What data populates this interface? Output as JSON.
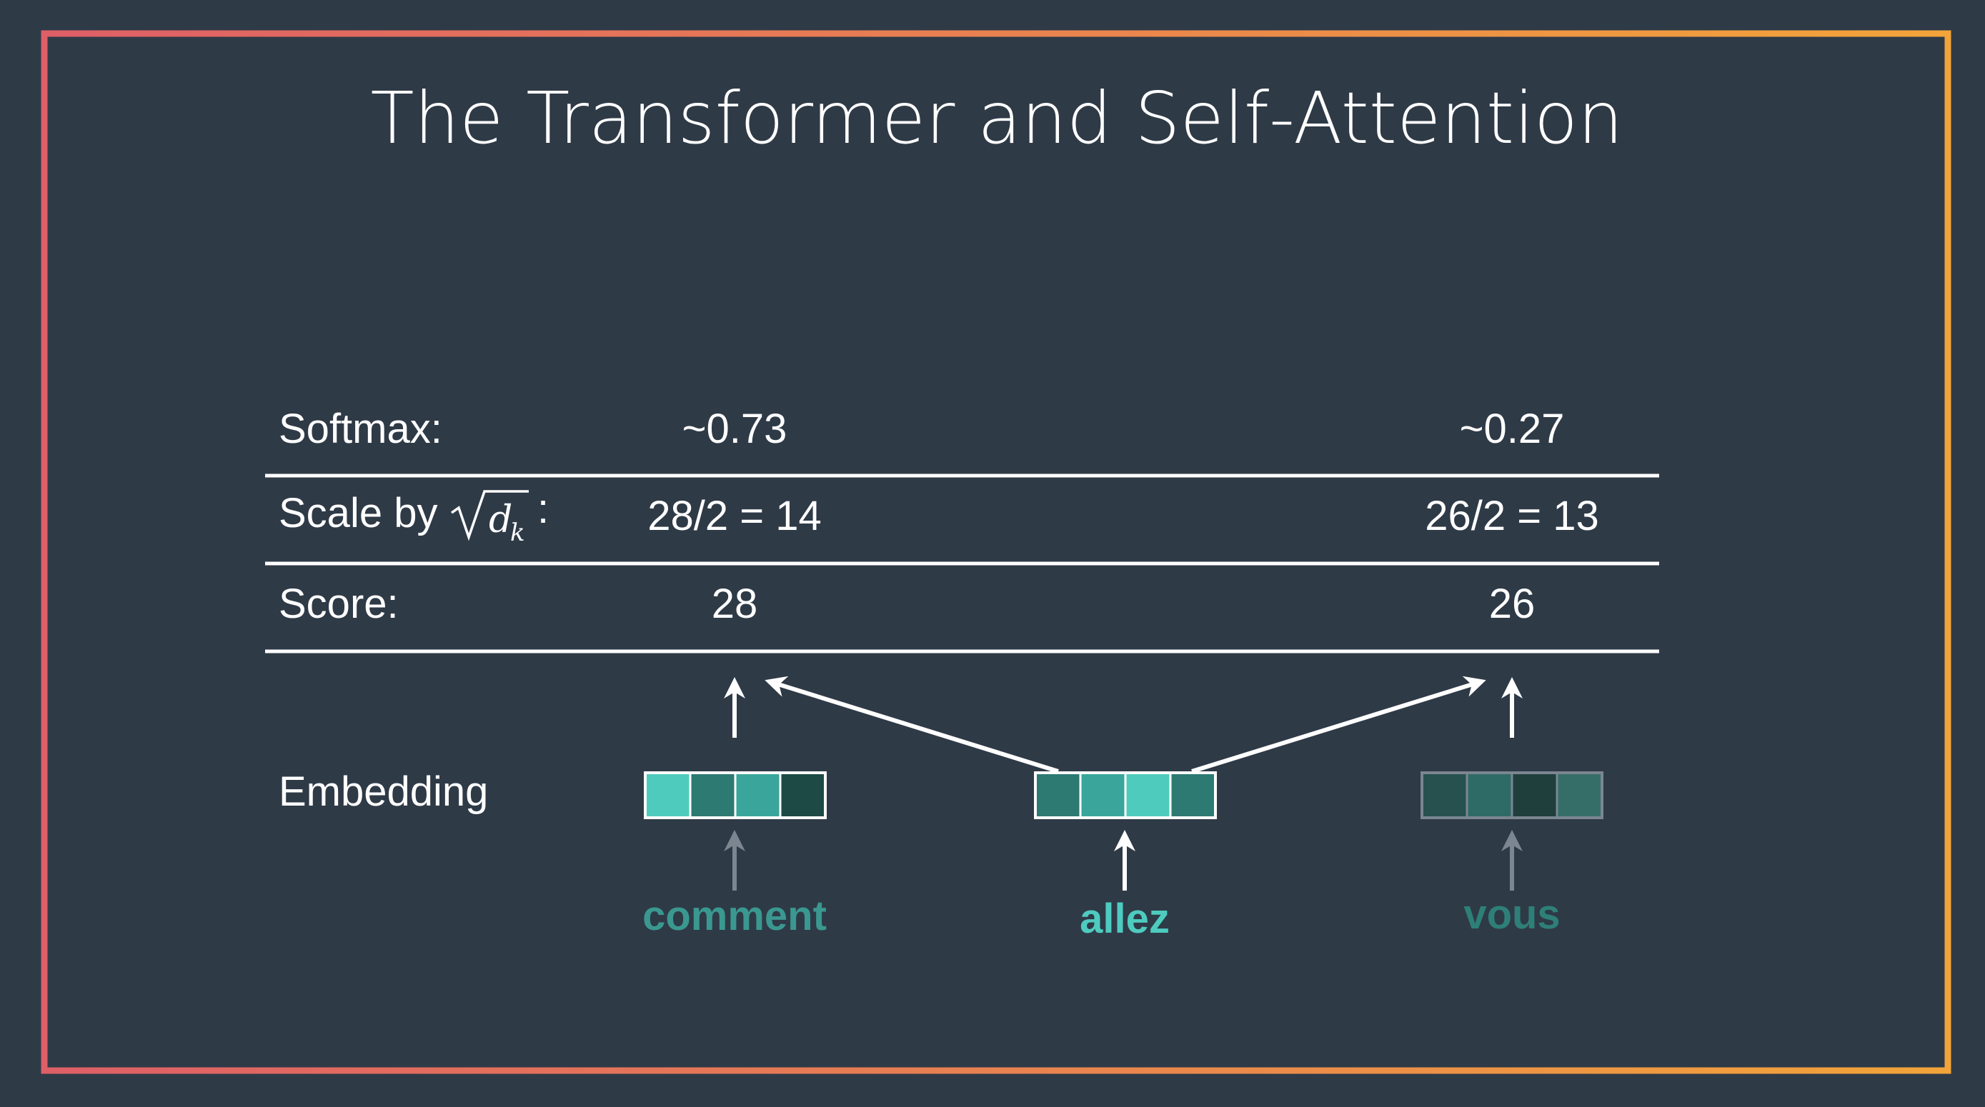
{
  "slide": {
    "title": "The Transformer and Self-Attention",
    "rows": {
      "softmax": {
        "label": "Softmax:",
        "left_value": "~0.73",
        "right_value": "~0.27"
      },
      "scale": {
        "label_prefix": "Scale by",
        "label_suffix": ":",
        "left_value": "28/2 = 14",
        "right_value": "26/2 = 13"
      },
      "score": {
        "label": "Score:",
        "left_value": "28",
        "right_value": "26"
      }
    },
    "embedding_label": "Embedding",
    "words": {
      "comment": {
        "label": "comment",
        "color": "#3a9890",
        "cells": [
          "#4fcbbd",
          "#2d7a72",
          "#3aa69b",
          "#1e4a45"
        ]
      },
      "allez": {
        "label": "allez",
        "color": "#4ecbbf",
        "cells": [
          "#2d7a72",
          "#3aa69b",
          "#4fcbbd",
          "#2d7a72"
        ]
      },
      "vous": {
        "label": "vous",
        "color": "#2e7f77",
        "cells": [
          "#27514f",
          "#2f6b66",
          "#1f3f3d",
          "#356e69"
        ]
      }
    },
    "colors": {
      "background": "#2f3a47",
      "border_start": "#de5f67",
      "border_end": "#f2a43a",
      "arrow_white": "#ffffff",
      "arrow_gray": "#7b8691"
    }
  }
}
